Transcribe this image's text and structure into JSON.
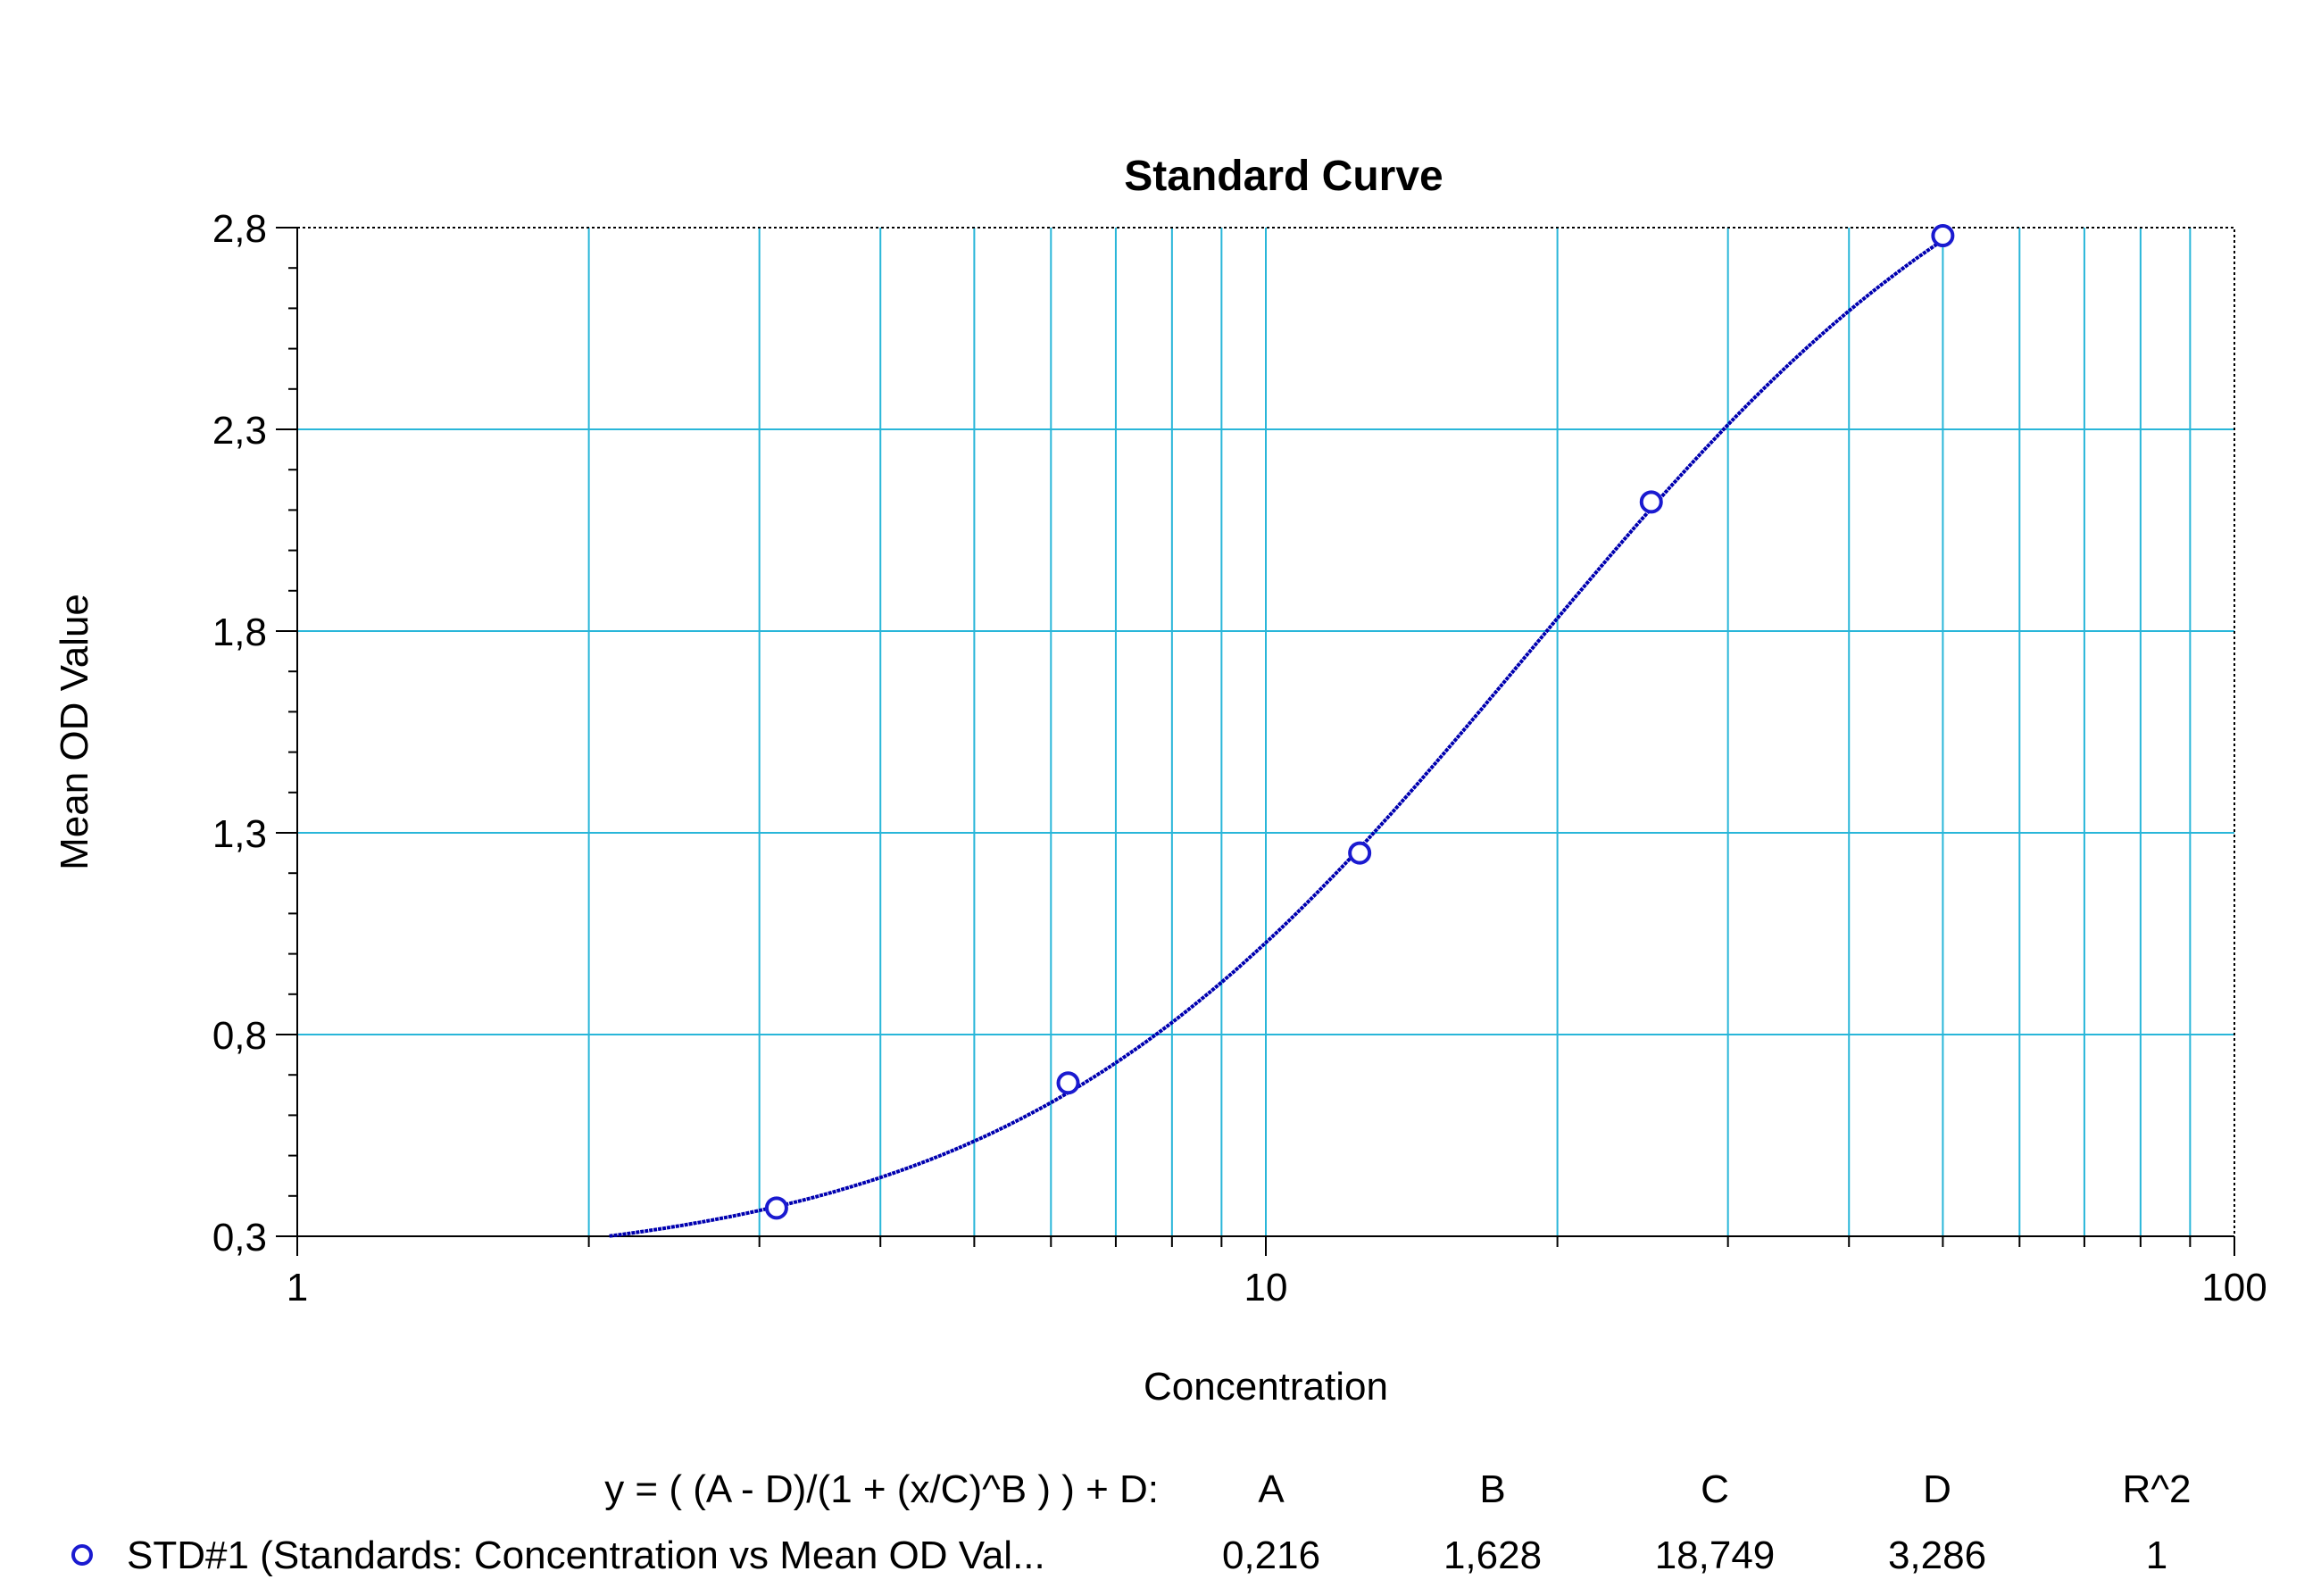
{
  "chart_data": {
    "type": "scatter",
    "title": "Standard Curve",
    "xlabel": "Concentration",
    "ylabel": "Mean OD Value",
    "x_scale": "log",
    "xlim": [
      1,
      100
    ],
    "ylim": [
      0.3,
      2.8
    ],
    "x_tick_labels": [
      "1",
      "10",
      "100"
    ],
    "y_tick_labels": [
      "0,3",
      "0,8",
      "1,3",
      "1,8",
      "2,3",
      "2,8"
    ],
    "grid": true,
    "series": [
      {
        "name": "STD#1 (Standards: Concentration vs Mean OD Val...",
        "color": "#1a1ad0",
        "marker": "circle",
        "x": [
          3.125,
          6.25,
          12.5,
          25,
          50
        ],
        "y": [
          0.37,
          0.68,
          1.25,
          2.12,
          2.78
        ]
      }
    ],
    "fit": {
      "equation": "y = ( (A - D)/(1 + (x/C)^B ) ) + D:",
      "headers": [
        "A",
        "B",
        "C",
        "D",
        "R^2"
      ],
      "values": [
        "0,216",
        "1,628",
        "18,749",
        "3,286",
        "1"
      ],
      "params": {
        "A": 0.216,
        "B": 1.628,
        "C": 18.749,
        "D": 3.286
      },
      "x_start": 2.1,
      "x_end": 50,
      "color": "#0000b0"
    }
  }
}
